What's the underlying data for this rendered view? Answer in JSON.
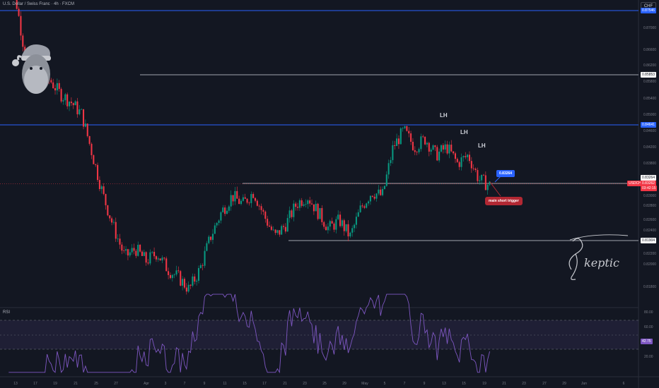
{
  "header": {
    "title": "U.S. Dollar / Swiss Franc · 4h · FXCM",
    "currency_button": "CHF"
  },
  "price_axis": {
    "ticks": [
      "0.87000",
      "0.86800",
      "0.86600",
      "0.86400",
      "0.86200",
      "0.86000",
      "0.85800",
      "0.85600",
      "0.85400",
      "0.85200",
      "0.85000",
      "0.84800",
      "0.84600",
      "0.84400",
      "0.84200",
      "0.84000",
      "0.83800",
      "0.83600",
      "0.83400",
      "0.83200",
      "0.83000",
      "0.82800",
      "0.82600",
      "0.82400",
      "0.82200",
      "0.82000",
      "0.81800"
    ],
    "tags": {
      "top_blue": "0.87546",
      "white_high": "0.85853",
      "blue_mid": "0.84641",
      "white_current": "0.83264",
      "symbol": "USDCHF",
      "symbol_price": "0.83262",
      "countdown": "03:42:15",
      "white_low": "0.81904"
    }
  },
  "rsi": {
    "label": "RSI",
    "ticks": [
      "80.00",
      "60.00",
      "20.00"
    ],
    "value": "42.75"
  },
  "time_axis": {
    "labels": [
      "13",
      "17",
      "19",
      "21",
      "25",
      "27",
      "Apr",
      "3",
      "7",
      "9",
      "11",
      "15",
      "17",
      "21",
      "23",
      "25",
      "29",
      "May",
      "5",
      "7",
      "9",
      "13",
      "15",
      "19",
      "21",
      "23",
      "27",
      "29",
      "Jun",
      "6"
    ]
  },
  "annotations": {
    "lh_labels": [
      "LH",
      "LH",
      "LH"
    ],
    "level_callout": "0.83264",
    "trigger_callout": "main short trigger",
    "signature": "Skeptic"
  },
  "colors": {
    "up": "#089981",
    "down": "#f23645",
    "blue_level": "#2962ff",
    "white_level": "#d1d4dc",
    "rsi": "#7e57c2",
    "background": "#131722"
  },
  "chart_data": {
    "type": "candlestick",
    "symbol": "USDCHF",
    "timeframe": "4h",
    "levels": [
      0.87546,
      0.85853,
      0.84641,
      0.83264,
      0.81904
    ],
    "path": [
      0.89,
      0.876,
      0.86,
      0.857,
      0.8585,
      0.855,
      0.853,
      0.85,
      0.84,
      0.83,
      0.822,
      0.815,
      0.817,
      0.814,
      0.816,
      0.812,
      0.81,
      0.807,
      0.812,
      0.82,
      0.826,
      0.83,
      0.828,
      0.831,
      0.825,
      0.82,
      0.823,
      0.828,
      0.83,
      0.826,
      0.822,
      0.824,
      0.82,
      0.827,
      0.831,
      0.83,
      0.842,
      0.846,
      0.842,
      0.844,
      0.84,
      0.842,
      0.838,
      0.84,
      0.834,
      0.8326
    ],
    "rsi_range": [
      20,
      80
    ]
  }
}
